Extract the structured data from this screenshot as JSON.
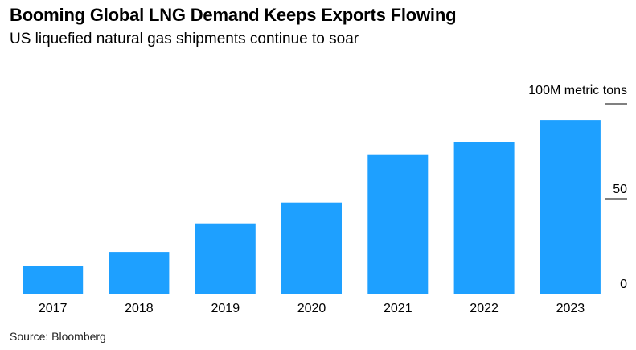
{
  "header": {
    "title": "Booming Global LNG Demand Keeps Exports Flowing",
    "subtitle": "US liquefied natural gas shipments continue to soar"
  },
  "footer": {
    "source": "Source: Bloomberg"
  },
  "colors": {
    "bar": "#1ea0ff",
    "axis": "#000000",
    "tick": "#000000"
  },
  "chart_data": {
    "type": "bar",
    "title": "Booming Global LNG Demand Keeps Exports Flowing",
    "subtitle": "US liquefied natural gas shipments continue to soar",
    "unit_label": "100M metric tons",
    "categories": [
      "2017",
      "2018",
      "2019",
      "2020",
      "2021",
      "2022",
      "2023"
    ],
    "values": [
      14.5,
      22,
      37,
      48,
      73,
      80,
      91.5
    ],
    "y_ticks": [
      {
        "value": 0,
        "label": "0"
      },
      {
        "value": 50,
        "label": "50"
      },
      {
        "value": 100,
        "label": ""
      }
    ],
    "ylim": [
      0,
      100
    ],
    "xlabel": "",
    "ylabel": "",
    "grid": false,
    "legend": "none"
  }
}
